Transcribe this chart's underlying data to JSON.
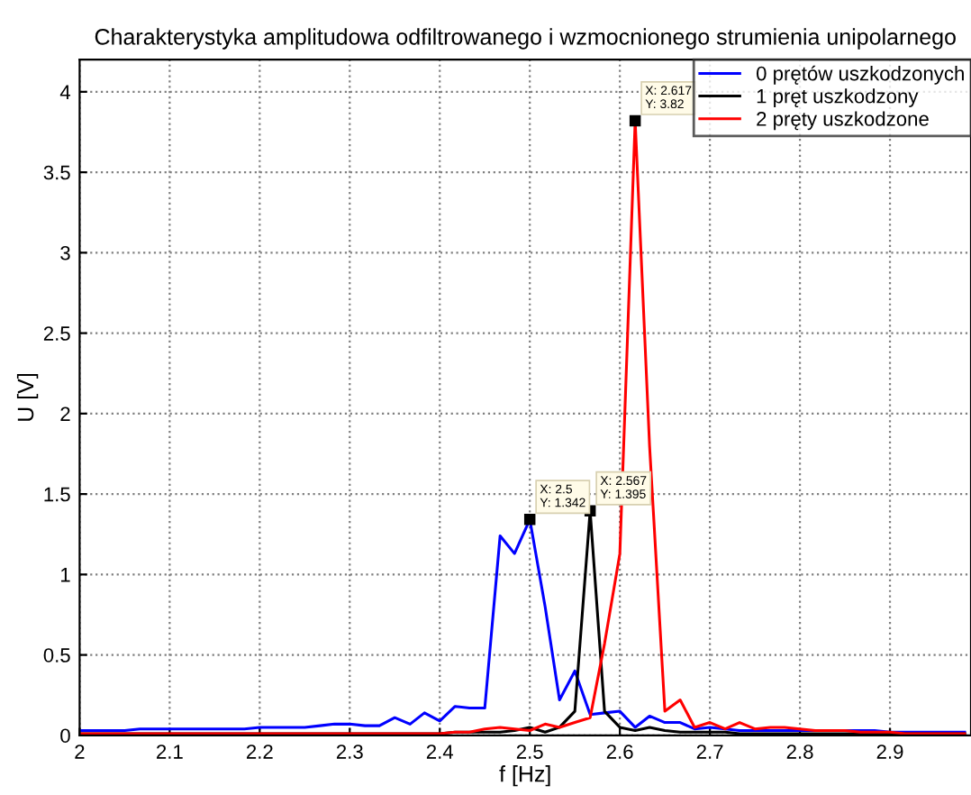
{
  "chart_data": {
    "type": "line",
    "title": "Charakterystyka amplitudowa odfiltrowanego i wzmocnionego strumienia unipolarnego",
    "xlabel": "f [Hz]",
    "ylabel": "U [V]",
    "x": [
      2.0,
      2.017,
      2.033,
      2.05,
      2.067,
      2.083,
      2.1,
      2.117,
      2.133,
      2.15,
      2.167,
      2.183,
      2.2,
      2.217,
      2.233,
      2.25,
      2.267,
      2.283,
      2.3,
      2.317,
      2.333,
      2.35,
      2.367,
      2.383,
      2.4,
      2.417,
      2.433,
      2.45,
      2.467,
      2.483,
      2.5,
      2.517,
      2.533,
      2.55,
      2.567,
      2.583,
      2.6,
      2.617,
      2.633,
      2.65,
      2.667,
      2.683,
      2.7,
      2.717,
      2.733,
      2.75,
      2.767,
      2.783,
      2.8,
      2.817,
      2.833,
      2.85,
      2.867,
      2.883,
      2.9,
      2.917,
      2.933,
      2.95,
      2.967,
      2.983
    ],
    "series": [
      {
        "name": "0 prętów uszkodzonych",
        "color": "#0000ff",
        "values": [
          0.03,
          0.03,
          0.03,
          0.03,
          0.04,
          0.04,
          0.04,
          0.04,
          0.04,
          0.04,
          0.04,
          0.04,
          0.05,
          0.05,
          0.05,
          0.05,
          0.06,
          0.07,
          0.07,
          0.06,
          0.06,
          0.11,
          0.07,
          0.14,
          0.09,
          0.18,
          0.17,
          0.17,
          1.24,
          1.13,
          1.342,
          0.8,
          0.22,
          0.4,
          0.13,
          0.14,
          0.15,
          0.05,
          0.12,
          0.08,
          0.08,
          0.04,
          0.05,
          0.04,
          0.03,
          0.03,
          0.03,
          0.03,
          0.03,
          0.03,
          0.03,
          0.03,
          0.03,
          0.03,
          0.02,
          0.02,
          0.02,
          0.02,
          0.02,
          0.02
        ]
      },
      {
        "name": "1 pręt uszkodzony",
        "color": "#000000",
        "values": [
          0.01,
          0.01,
          0.01,
          0.01,
          0.01,
          0.01,
          0.01,
          0.01,
          0.01,
          0.01,
          0.01,
          0.01,
          0.01,
          0.01,
          0.01,
          0.01,
          0.01,
          0.01,
          0.01,
          0.01,
          0.01,
          0.01,
          0.01,
          0.01,
          0.01,
          0.02,
          0.02,
          0.02,
          0.02,
          0.03,
          0.05,
          0.02,
          0.05,
          0.15,
          1.395,
          0.15,
          0.05,
          0.03,
          0.05,
          0.03,
          0.02,
          0.02,
          0.02,
          0.02,
          0.01,
          0.01,
          0.01,
          0.01,
          0.01,
          0.01,
          0.01,
          0.01,
          0.01,
          0.01,
          0.01,
          0.01,
          0.01,
          0.01,
          0.01,
          0.01
        ]
      },
      {
        "name": "2 pręty uszkodzone",
        "color": "#ff0000",
        "values": [
          0.01,
          0.01,
          0.01,
          0.01,
          0.01,
          0.01,
          0.01,
          0.01,
          0.01,
          0.01,
          0.01,
          0.01,
          0.01,
          0.01,
          0.01,
          0.01,
          0.01,
          0.01,
          0.01,
          0.01,
          0.01,
          0.01,
          0.01,
          0.01,
          0.01,
          0.02,
          0.02,
          0.04,
          0.05,
          0.04,
          0.03,
          0.07,
          0.05,
          0.08,
          0.11,
          0.57,
          1.13,
          3.82,
          1.8,
          0.15,
          0.22,
          0.05,
          0.08,
          0.04,
          0.08,
          0.04,
          0.05,
          0.05,
          0.04,
          0.03,
          0.03,
          0.03,
          0.02,
          0.02,
          0.02,
          0.01,
          0.01,
          0.01,
          0.01,
          0.01
        ]
      }
    ],
    "annotations": [
      {
        "text": "X: 2.5\nY: 1.342",
        "x": 2.5,
        "y": 1.342
      },
      {
        "text": "X: 2.567\nY: 1.395",
        "x": 2.567,
        "y": 1.395
      },
      {
        "text": "X: 2.617\nY: 3.82",
        "x": 2.617,
        "y": 3.82
      }
    ],
    "xlim": [
      2,
      2.99
    ],
    "ylim": [
      0,
      4.2
    ],
    "xticks": [
      2,
      2.1,
      2.2,
      2.3,
      2.4,
      2.5,
      2.6,
      2.7,
      2.8,
      2.9
    ],
    "yticks": [
      0,
      0.5,
      1,
      1.5,
      2,
      2.5,
      3,
      3.5,
      4
    ],
    "grid": true,
    "legend": "top right"
  }
}
